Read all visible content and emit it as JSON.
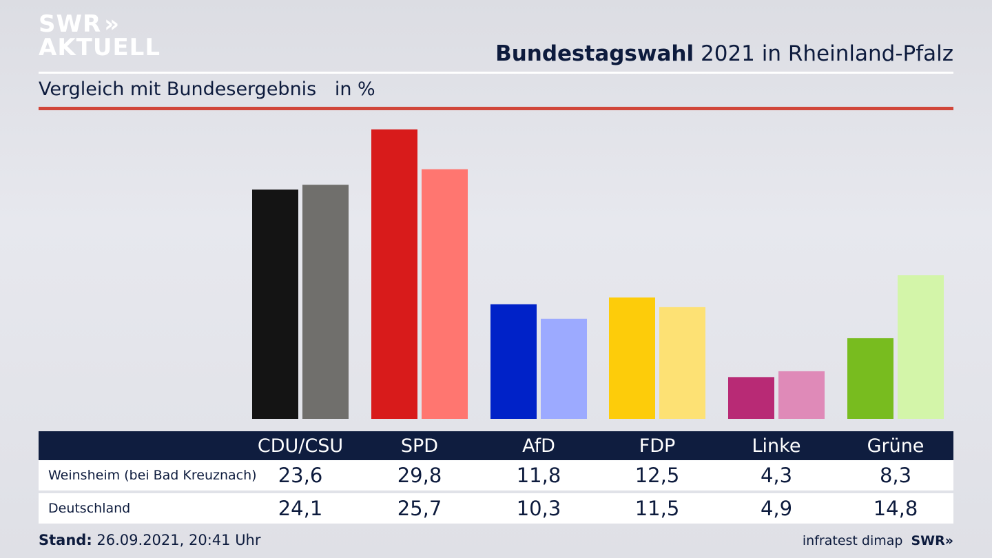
{
  "logo": {
    "line1": "SWR",
    "line2": "AKTUELL",
    "chevrons": "»"
  },
  "header": {
    "title_bold": "Bundestagswahl",
    "title_rest": "2021 in Rheinland-Pfalz",
    "subtitle": "Vergleich mit Bundesergebnis",
    "unit": "in %"
  },
  "chart_data": {
    "type": "bar",
    "categories": [
      "CDU/CSU",
      "SPD",
      "AfD",
      "FDP",
      "Linke",
      "Grüne"
    ],
    "series": [
      {
        "name": "Weinsheim (bei Bad Kreuznach)",
        "values": [
          23.6,
          29.8,
          11.8,
          12.5,
          4.3,
          8.3
        ],
        "colors": [
          "#141414",
          "#d81b1b",
          "#0022c8",
          "#fdcc0a",
          "#b82a75",
          "#78bc1f"
        ]
      },
      {
        "name": "Deutschland",
        "values": [
          24.1,
          25.7,
          10.3,
          11.5,
          4.9,
          14.8
        ],
        "colors": [
          "#706f6c",
          "#ff7670",
          "#9caaff",
          "#fde174",
          "#df8ab8",
          "#d3f5a9"
        ]
      }
    ],
    "ylim": [
      0,
      30
    ],
    "grid": false,
    "legend": "table-below"
  },
  "table": {
    "rows": [
      {
        "label": "Weinsheim (bei Bad Kreuznach)",
        "values": [
          "23,6",
          "29,8",
          "11,8",
          "12,5",
          "4,3",
          "8,3"
        ]
      },
      {
        "label": "Deutschland",
        "values": [
          "24,1",
          "25,7",
          "10,3",
          "11,5",
          "4,9",
          "14,8"
        ]
      }
    ]
  },
  "footer": {
    "stand_label": "Stand:",
    "stand_value": "26.09.2021, 20:41 Uhr",
    "source": "infratest dimap",
    "brand": "SWR»"
  }
}
